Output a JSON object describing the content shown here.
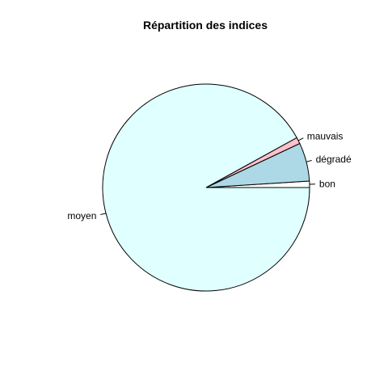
{
  "chart_data": {
    "type": "pie",
    "title": "Répartition des indices",
    "start_angle_deg": 0,
    "direction": "counterclockwise",
    "slices": [
      {
        "label": "bon",
        "value": 1,
        "color": "#ffffff"
      },
      {
        "label": "dégradé",
        "value": 6,
        "color": "#add8e6"
      },
      {
        "label": "mauvais",
        "value": 1,
        "color": "#ffc0cb"
      },
      {
        "label": "moyen",
        "value": 92,
        "color": "#e0ffff"
      }
    ]
  }
}
